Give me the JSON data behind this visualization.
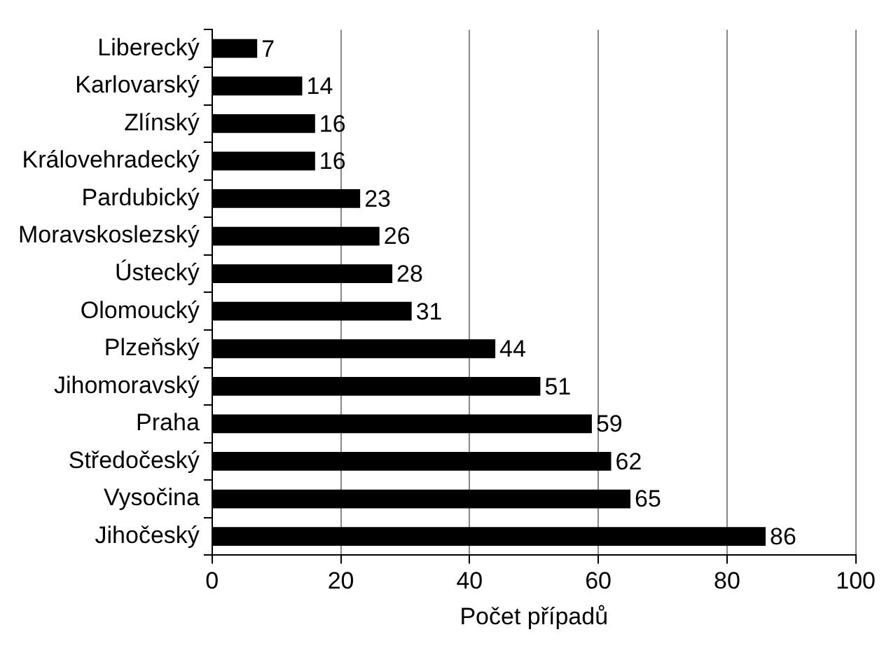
{
  "chart_data": {
    "type": "bar",
    "orientation": "horizontal",
    "xlabel": "Počet případů",
    "categories": [
      "Liberecký",
      "Karlovarský",
      "Zlínský",
      "Královehradecký",
      "Pardubický",
      "Moravskoslezský",
      "Ústecký",
      "Olomoucký",
      "Plzeňský",
      "Jihomoravský",
      "Praha",
      "Středočeský",
      "Vysočina",
      "Jihočeský"
    ],
    "values": [
      7,
      14,
      16,
      16,
      23,
      26,
      28,
      31,
      44,
      51,
      59,
      62,
      65,
      86
    ],
    "color": "#000000",
    "xlim": [
      0,
      100
    ],
    "xticks": [
      0,
      20,
      40,
      60,
      80,
      100
    ],
    "grid": "x",
    "data_labels": true
  }
}
